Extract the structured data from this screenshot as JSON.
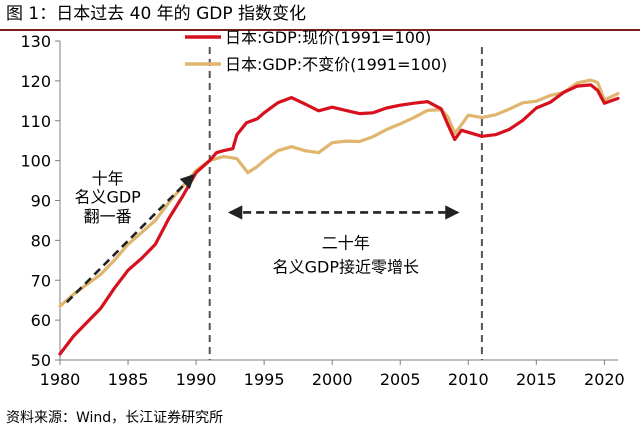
{
  "figure": {
    "title": "图 1：日本过去 40 年的 GDP 指数变化",
    "source": "资料来源：Wind，长江证券研究所"
  },
  "chart_data": {
    "type": "line",
    "x_range": [
      1980,
      2021
    ],
    "ylim": [
      50,
      130
    ],
    "x_ticks": [
      1980,
      1985,
      1990,
      1995,
      2000,
      2005,
      2010,
      2015,
      2020
    ],
    "y_ticks": [
      50,
      60,
      70,
      80,
      90,
      100,
      110,
      120,
      130
    ],
    "legend_position": "top",
    "grid": false,
    "series": [
      {
        "name": "日本:GDP:现价(1991=100)",
        "color": "#d7101e",
        "points": [
          [
            1980,
            51.5
          ],
          [
            1981,
            56
          ],
          [
            1982,
            59.5
          ],
          [
            1983,
            63
          ],
          [
            1984,
            68
          ],
          [
            1985,
            72.5
          ],
          [
            1986,
            75.5
          ],
          [
            1987,
            79
          ],
          [
            1988,
            85.5
          ],
          [
            1989,
            91
          ],
          [
            1990,
            97
          ],
          [
            1991,
            100
          ],
          [
            1991.5,
            102
          ],
          [
            1992,
            102.5
          ],
          [
            1992.7,
            103
          ],
          [
            1993,
            106.5
          ],
          [
            1993.7,
            109.5
          ],
          [
            1994.5,
            110.5
          ],
          [
            1995,
            112
          ],
          [
            1996,
            114.5
          ],
          [
            1997,
            115.8
          ],
          [
            1998,
            114.2
          ],
          [
            1999,
            112.5
          ],
          [
            2000,
            113.4
          ],
          [
            2001,
            112.6
          ],
          [
            2002,
            111.8
          ],
          [
            2003,
            112
          ],
          [
            2004,
            113.2
          ],
          [
            2005,
            113.9
          ],
          [
            2006,
            114.4
          ],
          [
            2007,
            114.8
          ],
          [
            2008,
            113
          ],
          [
            2008.5,
            109
          ],
          [
            2009,
            105.3
          ],
          [
            2009.5,
            107.6
          ],
          [
            2010,
            107.1
          ],
          [
            2011,
            106.1
          ],
          [
            2012,
            106.5
          ],
          [
            2013,
            107.8
          ],
          [
            2014,
            110.1
          ],
          [
            2015,
            113.2
          ],
          [
            2016,
            114.6
          ],
          [
            2017,
            117.1
          ],
          [
            2018,
            118.7
          ],
          [
            2019,
            119
          ],
          [
            2019.5,
            117.6
          ],
          [
            2020,
            114.4
          ],
          [
            2021,
            115.6
          ]
        ]
      },
      {
        "name": "日本:GDP:不变价(1991=100)",
        "color": "#e0b56d",
        "points": [
          [
            1980,
            63.5
          ],
          [
            1981,
            66.5
          ],
          [
            1982,
            69
          ],
          [
            1983,
            71.5
          ],
          [
            1984,
            75
          ],
          [
            1985,
            79
          ],
          [
            1986,
            82
          ],
          [
            1987,
            85
          ],
          [
            1988,
            89.5
          ],
          [
            1989,
            93.5
          ],
          [
            1990,
            97.5
          ],
          [
            1991,
            100
          ],
          [
            1992,
            101
          ],
          [
            1993,
            100.5
          ],
          [
            1993.8,
            97
          ],
          [
            1994.5,
            98.5
          ],
          [
            1995,
            100
          ],
          [
            1996,
            102.5
          ],
          [
            1997,
            103.5
          ],
          [
            1998,
            102.5
          ],
          [
            1999,
            102
          ],
          [
            2000,
            104.5
          ],
          [
            2001,
            104.9
          ],
          [
            2002,
            104.8
          ],
          [
            2003,
            106
          ],
          [
            2004,
            107.8
          ],
          [
            2005,
            109.2
          ],
          [
            2006,
            110.8
          ],
          [
            2007,
            112.6
          ],
          [
            2008,
            112.8
          ],
          [
            2008.5,
            111
          ],
          [
            2009,
            106.8
          ],
          [
            2009.5,
            109
          ],
          [
            2010,
            111.4
          ],
          [
            2011,
            110.8
          ],
          [
            2012,
            111.5
          ],
          [
            2013,
            112.9
          ],
          [
            2014,
            114.5
          ],
          [
            2015,
            114.9
          ],
          [
            2016,
            116.3
          ],
          [
            2017,
            117.1
          ],
          [
            2018,
            119.5
          ],
          [
            2019,
            120.2
          ],
          [
            2019.5,
            119.6
          ],
          [
            2020,
            115.2
          ],
          [
            2021,
            116.8
          ]
        ]
      }
    ],
    "reference_lines": [
      1991,
      2011
    ],
    "annotations": [
      {
        "id": "decade-double",
        "lines": [
          "十年",
          "名义GDP",
          "翻一番"
        ],
        "x": 1983.5,
        "y": [
          94.2,
          89.5,
          84.6
        ]
      },
      {
        "id": "two-decades",
        "lines": [
          "二十年",
          "名义GDP接近零增长"
        ],
        "x": 2001,
        "y": [
          78,
          72
        ]
      }
    ],
    "arrows": [
      {
        "id": "decade-arrow",
        "from": [
          1980.5,
          64.5
        ],
        "to": [
          1989.8,
          96.3
        ],
        "heads": "end"
      },
      {
        "id": "two-decades-arrow",
        "from": [
          1992.5,
          87
        ],
        "to": [
          2009.2,
          87
        ],
        "heads": "both"
      }
    ]
  }
}
